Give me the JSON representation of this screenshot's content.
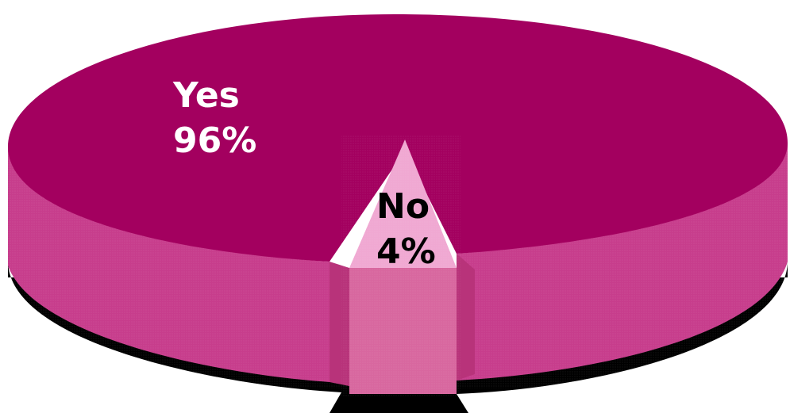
{
  "chart_data": {
    "type": "pie",
    "title": "",
    "slices": [
      {
        "label": "Yes",
        "value": 96,
        "value_label": "96%",
        "color": "#a3005f"
      },
      {
        "label": "No",
        "value": 4,
        "value_label": "4%",
        "color": "#f0a8d2"
      }
    ],
    "style": {
      "three_d": true,
      "exploded_slice": "No",
      "shadow_color": "#000000",
      "side_colors": [
        "#c73d8c",
        "#d8679f"
      ],
      "label_colors": [
        "#ffffff",
        "#000000"
      ]
    }
  }
}
